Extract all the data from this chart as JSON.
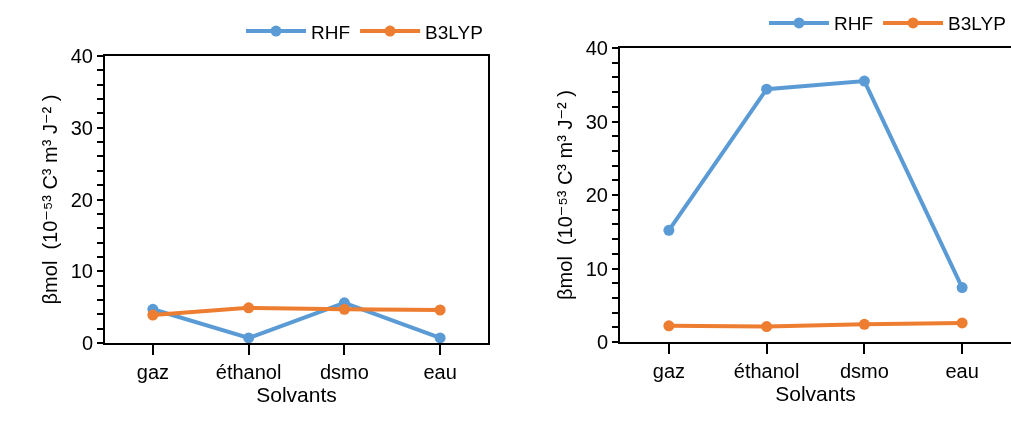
{
  "chart_data": [
    {
      "type": "line",
      "xlabel": "Solvants",
      "ylabel": "βmol  (10⁻⁵³ C³ m³ J⁻² )",
      "categories": [
        "gaz",
        "éthanol",
        "dsmo",
        "eau"
      ],
      "series": [
        {
          "name": "RHF",
          "color": "#5b9bd5",
          "values": [
            4.7,
            0.7,
            5.6,
            0.7
          ]
        },
        {
          "name": "B3LYP",
          "color": "#ed7d31",
          "values": [
            3.9,
            4.9,
            4.7,
            4.6
          ]
        }
      ],
      "ylim": [
        0,
        40
      ],
      "yticks": [
        0,
        {
          "value": 2,
          "label": null
        },
        {
          "value": 4,
          "label": null
        },
        {
          "value": 6,
          "label": null
        },
        {
          "value": 8,
          "label": null
        },
        10,
        {
          "value": 12,
          "label": null
        },
        {
          "value": 14,
          "label": null
        },
        {
          "value": 16,
          "label": null
        },
        {
          "value": 18,
          "label": null
        },
        20,
        {
          "value": 22,
          "label": null
        },
        {
          "value": 24,
          "label": null
        },
        {
          "value": 26,
          "label": null
        },
        {
          "value": 28,
          "label": null
        },
        30,
        {
          "value": 32,
          "label": null
        },
        {
          "value": 34,
          "label": null
        },
        {
          "value": 36,
          "label": null
        },
        {
          "value": 38,
          "label": null
        },
        40
      ],
      "grid": false,
      "legend": "top right",
      "marker": "circle",
      "line_style": "solid"
    },
    {
      "type": "line",
      "xlabel": "Solvants",
      "ylabel": "βmol  (10⁻⁵³ C³ m³ J⁻² )",
      "categories": [
        "gaz",
        "éthanol",
        "dsmo",
        "eau"
      ],
      "series": [
        {
          "name": "RHF",
          "color": "#5b9bd5",
          "values": [
            15.2,
            34.4,
            35.5,
            7.4
          ]
        },
        {
          "name": "B3LYP",
          "color": "#ed7d31",
          "values": [
            2.2,
            2.1,
            2.4,
            2.6
          ]
        }
      ],
      "ylim": [
        0,
        40
      ],
      "yticks": [
        0,
        {
          "value": 2,
          "label": null
        },
        {
          "value": 4,
          "label": null
        },
        {
          "value": 6,
          "label": null
        },
        {
          "value": 8,
          "label": null
        },
        10,
        {
          "value": 12,
          "label": null
        },
        {
          "value": 14,
          "label": null
        },
        {
          "value": 16,
          "label": null
        },
        {
          "value": 18,
          "label": null
        },
        20,
        {
          "value": 22,
          "label": null
        },
        {
          "value": 24,
          "label": null
        },
        {
          "value": 26,
          "label": null
        },
        {
          "value": 28,
          "label": null
        },
        30,
        {
          "value": 32,
          "label": null
        },
        {
          "value": 34,
          "label": null
        },
        {
          "value": 36,
          "label": null
        },
        {
          "value": 38,
          "label": null
        },
        40
      ],
      "grid": false,
      "legend": "top right",
      "marker": "circle",
      "line_style": "solid"
    }
  ]
}
